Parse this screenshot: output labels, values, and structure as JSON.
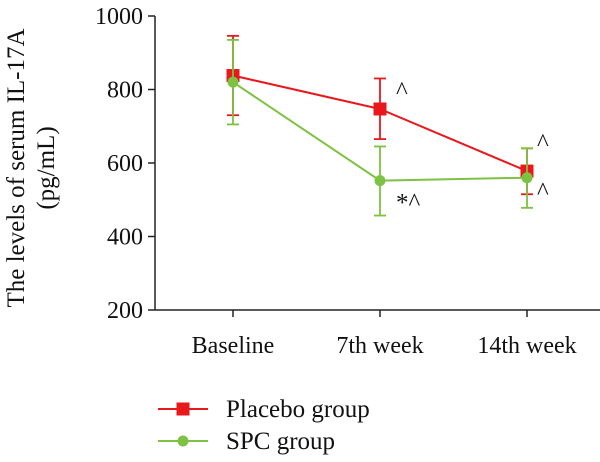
{
  "chart_data": {
    "type": "line",
    "ylabel_line1": "The levels of serum IL-17A",
    "ylabel_line2": "(pg/mL)",
    "categories": [
      "Baseline",
      "7th week",
      "14th week"
    ],
    "ylim": [
      200,
      1000
    ],
    "yticks": [
      "200",
      "400",
      "600",
      "800",
      "1000"
    ],
    "grid": false,
    "legend_position": "bottom-left",
    "series": [
      {
        "name": "Placebo group",
        "color": "#e8191c",
        "marker": "square",
        "values": [
          838,
          747,
          578
        ],
        "error": [
          [
            730,
            946
          ],
          [
            665,
            830
          ],
          [
            515,
            640
          ]
        ],
        "annotations": [
          "",
          "^",
          "^"
        ]
      },
      {
        "name": "SPC group",
        "color": "#7dc242",
        "marker": "circle",
        "values": [
          820,
          552,
          560
        ],
        "error": [
          [
            705,
            935
          ],
          [
            457,
            645
          ],
          [
            478,
            640
          ]
        ],
        "annotations": [
          "",
          "*^",
          "^"
        ]
      }
    ]
  }
}
